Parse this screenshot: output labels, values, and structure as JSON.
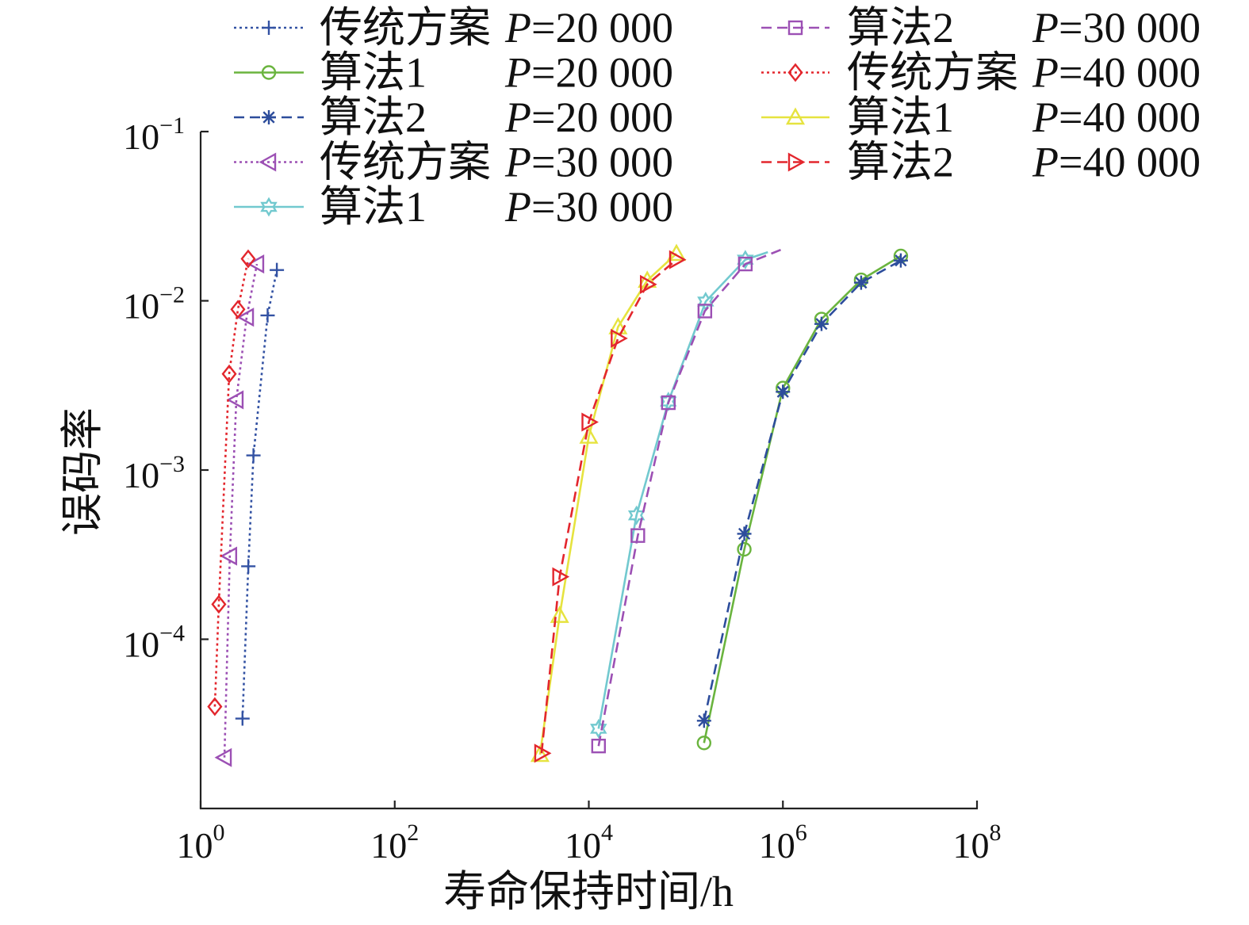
{
  "chart_data": {
    "type": "line",
    "title": "",
    "xlabel": "寿命保持时间/h",
    "ylabel": "误码率",
    "xscale": "log",
    "yscale": "log",
    "xlim": [
      1,
      100000000
    ],
    "ylim": [
      1e-05,
      0.1
    ],
    "grid": false,
    "legend_position": "top",
    "xticks": [
      {
        "value": 1,
        "base": "10",
        "exp": "0"
      },
      {
        "value": 100,
        "base": "10",
        "exp": "2"
      },
      {
        "value": 10000,
        "base": "10",
        "exp": "4"
      },
      {
        "value": 1000000,
        "base": "10",
        "exp": "6"
      },
      {
        "value": 100000000,
        "base": "10",
        "exp": "8"
      }
    ],
    "yticks": [
      {
        "value": 0.1,
        "base": "10",
        "exp": "−1"
      },
      {
        "value": 0.01,
        "base": "10",
        "exp": "−2"
      },
      {
        "value": 0.001,
        "base": "10",
        "exp": "−3"
      },
      {
        "value": 0.0001,
        "base": "10",
        "exp": "−4"
      }
    ],
    "series": [
      {
        "name": "传统方案",
        "param_symbol": "P",
        "param_value": "=20 000",
        "color": "#3352a3",
        "line_style": "dotted",
        "marker": "plus",
        "x": [
          2.7,
          3.1,
          3.5,
          4.9,
          6.1
        ],
        "y": [
          3.4e-05,
          0.00027,
          0.00122,
          0.0082,
          0.0152
        ]
      },
      {
        "name": "算法1",
        "param_symbol": "P",
        "param_value": "=20 000",
        "color": "#6ab43e",
        "line_style": "solid",
        "marker": "circle",
        "x": [
          154000,
          400000,
          1000000,
          2500000,
          6400000,
          16400000
        ],
        "y": [
          2.44e-05,
          0.00034,
          0.00305,
          0.0078,
          0.0133,
          0.0184
        ]
      },
      {
        "name": "算法2",
        "param_symbol": "P",
        "param_value": "=20 000",
        "color": "#2d4d9c",
        "line_style": "dashed",
        "marker": "asterisk",
        "x": [
          154000,
          400000,
          1000000,
          2500000,
          6400000,
          16400000
        ],
        "y": [
          3.3e-05,
          0.00042,
          0.0029,
          0.0073,
          0.0128,
          0.0173
        ]
      },
      {
        "name": "传统方案",
        "param_symbol": "P",
        "param_value": "=30 000",
        "color": "#9c50b4",
        "line_style": "dotted",
        "marker": "triangle-left",
        "x": [
          1.76,
          2.0,
          2.33,
          2.98,
          3.8
        ],
        "y": [
          2e-05,
          0.00031,
          0.0026,
          0.008,
          0.0165
        ]
      },
      {
        "name": "算法1",
        "param_symbol": "P",
        "param_value": "=30 000",
        "color": "#72c9cf",
        "line_style": "solid",
        "marker": "hexagram",
        "x": [
          12600,
          31000,
          66000,
          160000,
          410000,
          700000
        ],
        "y": [
          2.96e-05,
          0.00054,
          0.00254,
          0.0099,
          0.0175,
          0.0194
        ],
        "unmarked_points": [
          5
        ]
      },
      {
        "name": "算法2",
        "param_symbol": "P",
        "param_value": "=30 000",
        "color": "#9c50b4",
        "line_style": "dashed",
        "marker": "square",
        "x": [
          12600,
          32000,
          66000,
          157000,
          410000,
          950000
        ],
        "y": [
          2.34e-05,
          0.00041,
          0.0025,
          0.0087,
          0.0165,
          0.02
        ],
        "unmarked_points": [
          5
        ]
      },
      {
        "name": "传统方案",
        "param_symbol": "P",
        "param_value": "=40 000",
        "color": "#e3262d",
        "line_style": "dotted",
        "marker": "diamond",
        "x": [
          1.4,
          1.54,
          1.97,
          2.42,
          3.09
        ],
        "y": [
          4e-05,
          0.000161,
          0.0037,
          0.0089,
          0.0177
        ]
      },
      {
        "name": "算法1",
        "param_symbol": "P",
        "param_value": "=40 000",
        "color": "#e6e33f",
        "line_style": "solid",
        "marker": "triangle-up",
        "x": [
          3140,
          5000,
          10000,
          20000,
          40000,
          80000
        ],
        "y": [
          2.08e-05,
          0.000138,
          0.00158,
          0.007,
          0.0132,
          0.019
        ]
      },
      {
        "name": "算法2",
        "param_symbol": "P",
        "param_value": "=40 000",
        "color": "#e3262d",
        "line_style": "dashed",
        "marker": "triangle-right",
        "x": [
          3260,
          5000,
          10000,
          20000,
          40000,
          80000
        ],
        "y": [
          2.12e-05,
          0.000234,
          0.00192,
          0.006,
          0.0125,
          0.0175
        ]
      }
    ]
  }
}
